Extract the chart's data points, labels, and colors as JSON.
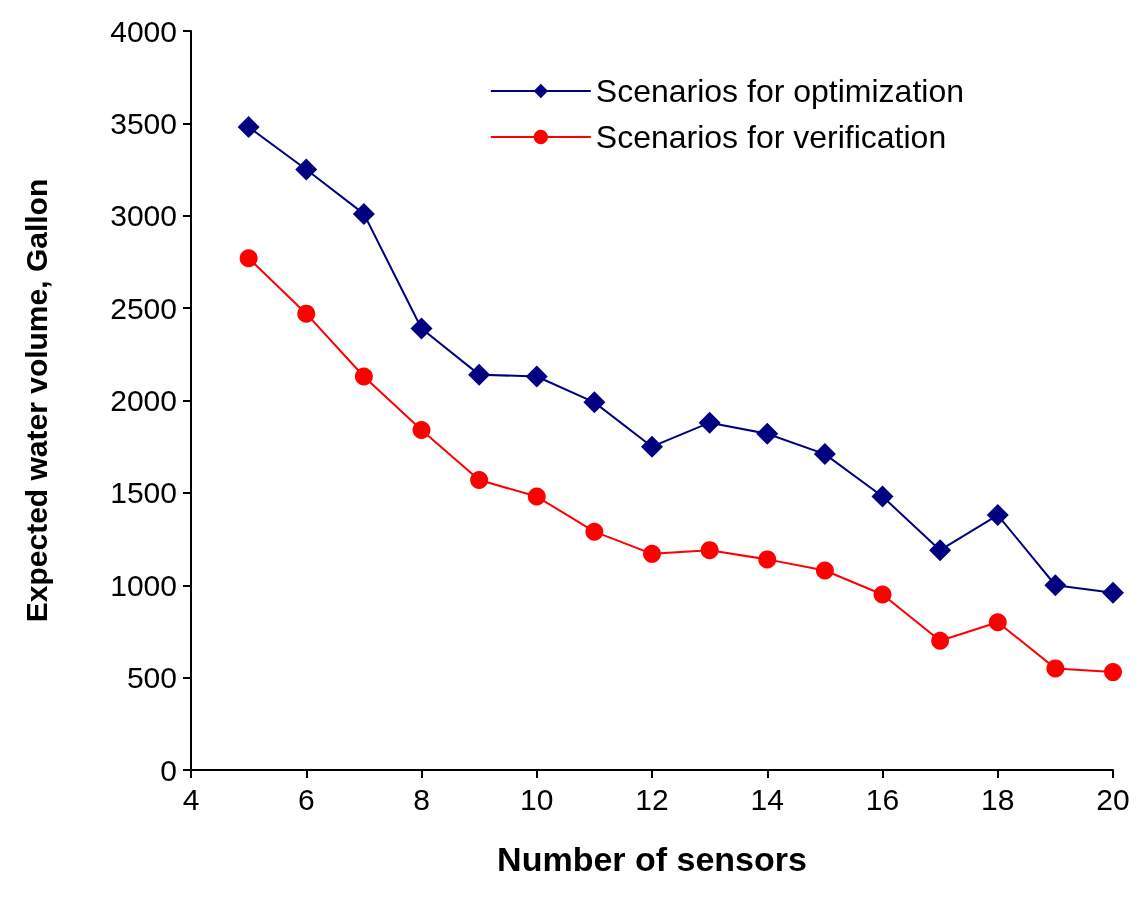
{
  "chart_data": {
    "type": "line",
    "xlabel": "Number of sensors",
    "ylabel": "Expected water volume, Gallon",
    "x": [
      5,
      6,
      7,
      8,
      9,
      10,
      11,
      12,
      13,
      14,
      15,
      16,
      17,
      18,
      19,
      20
    ],
    "series": [
      {
        "name": "Scenarios for optimization",
        "color": "#000080",
        "marker": "diamond",
        "values": [
          3480,
          3250,
          3010,
          2390,
          2140,
          2130,
          1990,
          1750,
          1880,
          1820,
          1710,
          1480,
          1190,
          1380,
          1000,
          960
        ]
      },
      {
        "name": "Scenarios for verification",
        "color": "#ff0000",
        "marker": "circle",
        "values": [
          2770,
          2470,
          2130,
          1840,
          1570,
          1480,
          1290,
          1170,
          1190,
          1140,
          1080,
          950,
          700,
          800,
          550,
          530
        ]
      }
    ],
    "xlim": [
      4,
      20
    ],
    "xticks": [
      4,
      6,
      8,
      10,
      12,
      14,
      16,
      18,
      20
    ],
    "ylim": [
      0,
      4000
    ],
    "yticks": [
      0,
      500,
      1000,
      1500,
      2000,
      2500,
      3000,
      3500,
      4000
    ],
    "grid": false,
    "legend": "top right",
    "line_style": "solid"
  }
}
